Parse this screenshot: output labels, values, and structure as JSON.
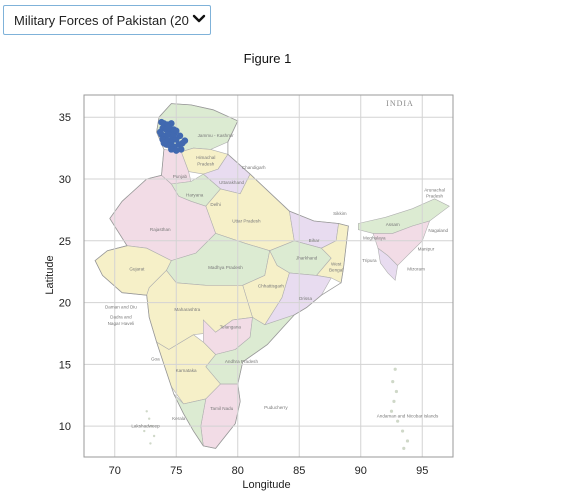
{
  "dropdown": {
    "selected": "Military Forces of Pakistan (20"
  },
  "figure": {
    "title": "Figure 1"
  },
  "map": {
    "heading": "INDIA",
    "places": [
      {
        "name": "Jammu - Kashmir",
        "lon": 78.2,
        "lat": 33.4
      },
      {
        "name": "Himachal",
        "lon": 77.4,
        "lat": 31.6
      },
      {
        "name": "Pradesh",
        "lon": 77.4,
        "lat": 31.1
      },
      {
        "name": "Chandigarh",
        "lon": 81.3,
        "lat": 30.8
      },
      {
        "name": "Punjab",
        "lon": 75.3,
        "lat": 30.1
      },
      {
        "name": "Uttarakhand",
        "lon": 79.5,
        "lat": 29.6
      },
      {
        "name": "Haryana",
        "lon": 76.5,
        "lat": 28.6
      },
      {
        "name": "Delhi",
        "lon": 78.2,
        "lat": 27.8
      },
      {
        "name": "Uttar Pradesh",
        "lon": 80.7,
        "lat": 26.5
      },
      {
        "name": "Sikkim",
        "lon": 88.3,
        "lat": 27.1
      },
      {
        "name": "Arunachal",
        "lon": 96.0,
        "lat": 29.0
      },
      {
        "name": "Pradesh",
        "lon": 96.0,
        "lat": 28.5
      },
      {
        "name": "Assam",
        "lon": 92.6,
        "lat": 26.2
      },
      {
        "name": "Nagaland",
        "lon": 96.3,
        "lat": 25.7
      },
      {
        "name": "Meghalaya",
        "lon": 91.1,
        "lat": 25.1
      },
      {
        "name": "Manipur",
        "lon": 95.3,
        "lat": 24.2
      },
      {
        "name": "Rajasthan",
        "lon": 73.7,
        "lat": 25.8
      },
      {
        "name": "Bihar",
        "lon": 86.2,
        "lat": 24.9
      },
      {
        "name": "Jharkhand",
        "lon": 85.6,
        "lat": 23.5
      },
      {
        "name": "West",
        "lon": 88.0,
        "lat": 23.0
      },
      {
        "name": "Bengal",
        "lon": 88.0,
        "lat": 22.5
      },
      {
        "name": "Tripura",
        "lon": 90.7,
        "lat": 23.3
      },
      {
        "name": "Mizoram",
        "lon": 94.5,
        "lat": 22.6
      },
      {
        "name": "Gujarat",
        "lon": 71.8,
        "lat": 22.6
      },
      {
        "name": "Madhya Pradesh",
        "lon": 79.0,
        "lat": 22.7
      },
      {
        "name": "Chhattisgarh",
        "lon": 82.7,
        "lat": 21.2
      },
      {
        "name": "Orissa",
        "lon": 85.5,
        "lat": 20.2
      },
      {
        "name": "Daman and Diu",
        "lon": 70.5,
        "lat": 19.5
      },
      {
        "name": "Dadra and",
        "lon": 70.5,
        "lat": 18.7
      },
      {
        "name": "Nagar Haveli",
        "lon": 70.5,
        "lat": 18.2
      },
      {
        "name": "Maharashtra",
        "lon": 75.9,
        "lat": 19.3
      },
      {
        "name": "Telangana",
        "lon": 79.4,
        "lat": 17.9
      },
      {
        "name": "Goa",
        "lon": 73.3,
        "lat": 15.3
      },
      {
        "name": "Andhra Pradesh",
        "lon": 80.3,
        "lat": 15.1
      },
      {
        "name": "Karnataka",
        "lon": 75.8,
        "lat": 14.4
      },
      {
        "name": "Tamil Nadu",
        "lon": 78.7,
        "lat": 11.3
      },
      {
        "name": "Puducherry",
        "lon": 83.1,
        "lat": 11.4
      },
      {
        "name": "Andaman and Nicobar Islands",
        "lon": 93.8,
        "lat": 10.7
      },
      {
        "name": "Kerala",
        "lon": 75.2,
        "lat": 10.5
      },
      {
        "name": "Lakshadweep",
        "lon": 72.5,
        "lat": 9.9
      }
    ]
  },
  "chart_data": {
    "type": "scatter",
    "title": "Figure 1",
    "xlabel": "Longitude",
    "ylabel": "Latitude",
    "xlim": [
      67.5,
      97.5
    ],
    "ylim": [
      7.5,
      36.8
    ],
    "xticks": [
      70,
      75,
      80,
      85,
      90,
      95
    ],
    "yticks": [
      10,
      15,
      20,
      25,
      30,
      35
    ],
    "grid": true,
    "marker_color": "#4169b0",
    "series": [
      {
        "x": [
          73.8,
          74.0,
          74.3,
          74.6,
          73.9,
          74.2,
          74.5,
          74.8,
          73.8,
          74.1,
          74.4,
          74.7,
          73.9,
          74.3,
          74.6,
          75.0,
          74.2,
          74.5,
          74.8,
          75.2,
          74.6,
          75.0,
          75.4,
          74.8,
          75.3,
          75.7,
          75.0,
          75.5,
          73.7,
          74.0,
          74.4
        ],
        "y": [
          34.6,
          34.5,
          34.4,
          34.5,
          34.1,
          34.0,
          33.9,
          34.0,
          33.6,
          33.5,
          33.6,
          33.4,
          33.2,
          33.1,
          33.0,
          33.2,
          32.8,
          32.7,
          32.6,
          32.8,
          32.4,
          32.3,
          32.4,
          33.6,
          33.5,
          33.1,
          33.9,
          32.9,
          33.8,
          32.9,
          34.2
        ]
      }
    ]
  }
}
